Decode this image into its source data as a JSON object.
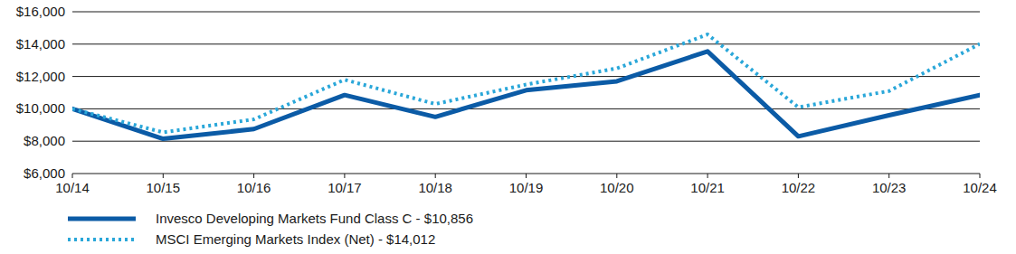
{
  "chart_data": {
    "type": "line",
    "categories": [
      "10/14",
      "10/15",
      "10/16",
      "10/17",
      "10/18",
      "10/19",
      "10/20",
      "10/21",
      "10/22",
      "10/23",
      "10/24"
    ],
    "series": [
      {
        "name": "Invesco Developing Markets Fund Class C - $10,856",
        "color": "#0b5ba6",
        "line_style": "solid",
        "values": [
          10000,
          8150,
          8750,
          10850,
          9500,
          11150,
          11700,
          13550,
          8300,
          9600,
          10856
        ]
      },
      {
        "name": "MSCI Emerging Markets Index (Net) - $14,012",
        "color": "#2aa7d9",
        "line_style": "dotted",
        "values": [
          10000,
          8550,
          9350,
          11800,
          10300,
          11500,
          12500,
          14600,
          10100,
          11100,
          14012
        ]
      }
    ],
    "ylim": [
      6000,
      16000
    ],
    "yticks": [
      {
        "value": 6000,
        "label": "$6,000"
      },
      {
        "value": 8000,
        "label": "$8,000"
      },
      {
        "value": 10000,
        "label": "$10,000"
      },
      {
        "value": 12000,
        "label": "$12,000"
      },
      {
        "value": 14000,
        "label": "$14,000"
      },
      {
        "value": 16000,
        "label": "$16,000"
      }
    ],
    "grid": true,
    "legend": "bottom-left"
  }
}
